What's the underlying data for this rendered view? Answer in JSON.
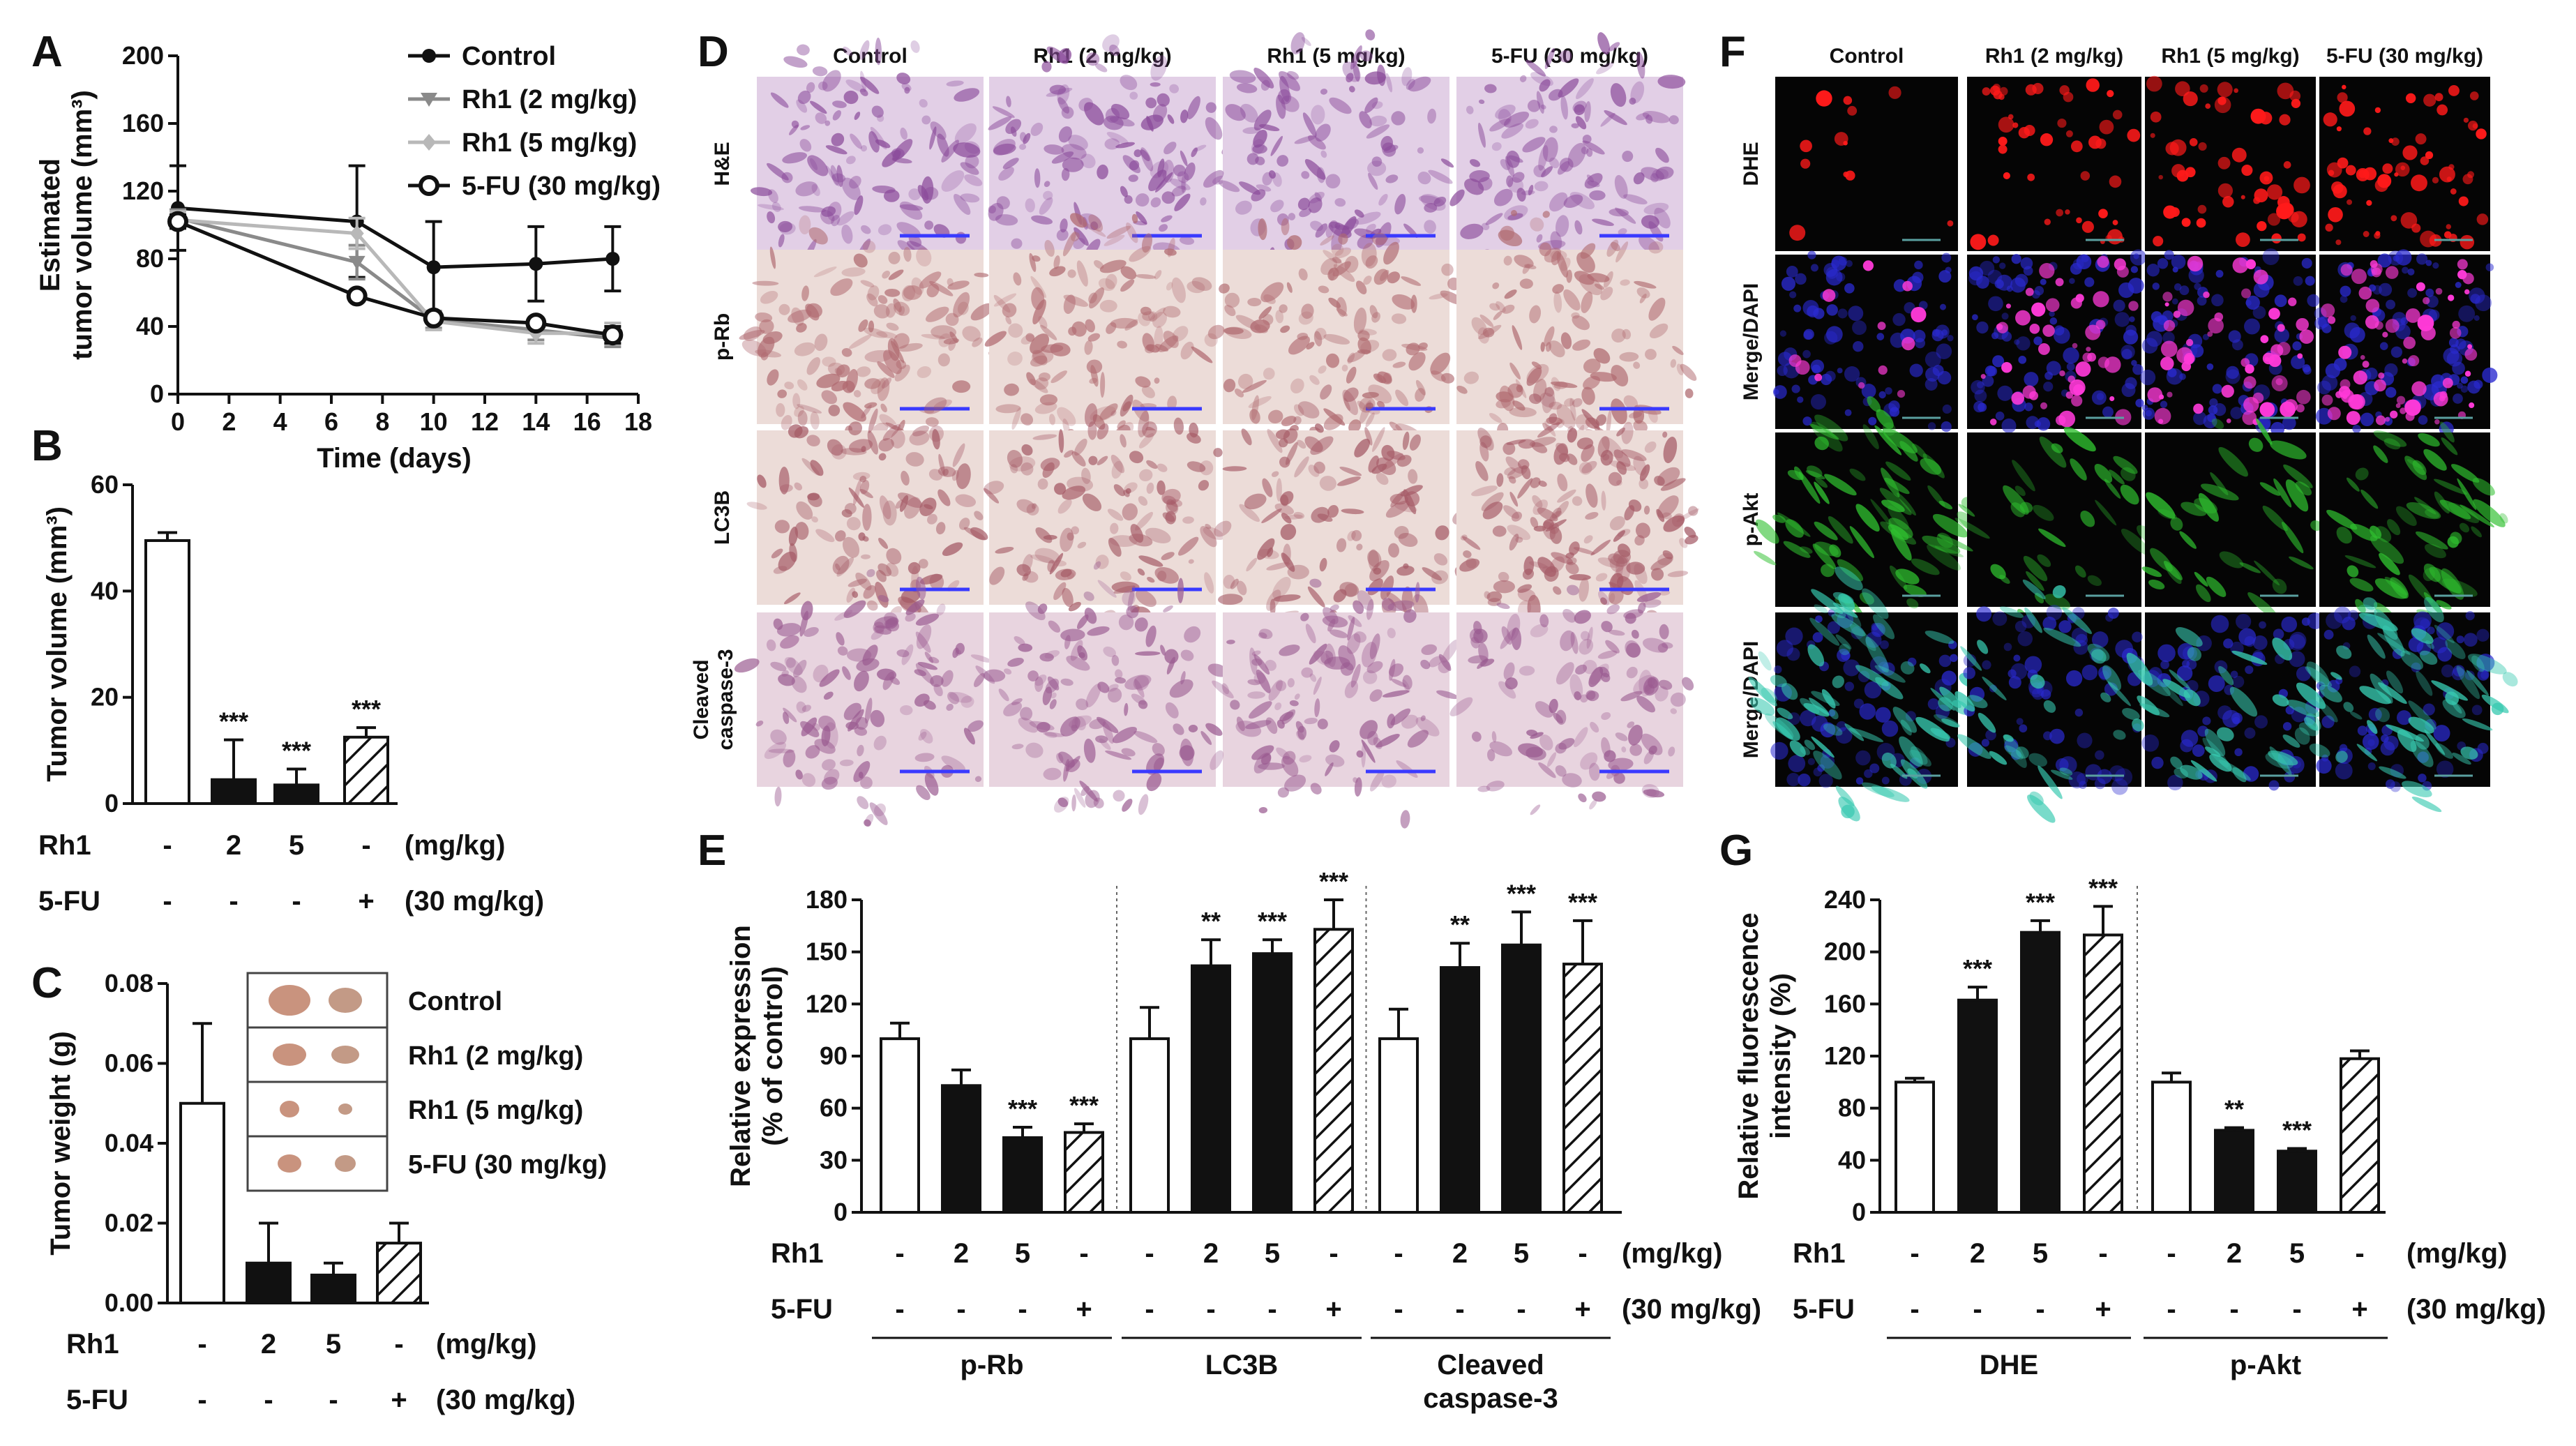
{
  "colors": {
    "axis": "#111111",
    "control_line": "#111111",
    "rh1_2_line": "#8a8a8a",
    "rh1_5_line": "#b8b8b8",
    "fu_line": "#111111",
    "he_tint": "#c8a6d2",
    "ihc_tint": "#d8b8b4",
    "dhe_red": "#ff1a1a",
    "dapi_blue": "#2a2ad0",
    "akt_green": "#2fbf2f"
  },
  "panels": {
    "A": {
      "label": "A"
    },
    "B": {
      "label": "B"
    },
    "C": {
      "label": "C"
    },
    "D": {
      "label": "D"
    },
    "E": {
      "label": "E"
    },
    "F": {
      "label": "F"
    },
    "G": {
      "label": "G"
    }
  },
  "conditions": {
    "rh1": "Rh1",
    "fu": "5-FU",
    "rh1_values": [
      "-",
      "2",
      "5",
      "-"
    ],
    "fu_values": [
      "-",
      "-",
      "-",
      "+"
    ],
    "rh1_unit": "(mg/kg)",
    "fu_unit": "(30 mg/kg)"
  },
  "micro_d": {
    "columns": [
      "Control",
      "Rh1 (2 mg/kg)",
      "Rh1 (5 mg/kg)",
      "5-FU (30 mg/kg)"
    ],
    "rows": [
      "H&E",
      "p-Rb",
      "LC3B",
      "Cleaved caspase-3"
    ]
  },
  "micro_f": {
    "columns": [
      "Control",
      "Rh1 (2 mg/kg)",
      "Rh1 (5 mg/kg)",
      "5-FU (30 mg/kg)"
    ],
    "rows": [
      "DHE",
      "Merge/DAPI",
      "p-Akt",
      "Merge/DAPI"
    ]
  },
  "photo_c": {
    "rows": [
      "Control",
      "Rh1 (2 mg/kg)",
      "Rh1 (5 mg/kg)",
      "5-FU (30 mg/kg)"
    ]
  },
  "chart_data": [
    {
      "panel": "A",
      "type": "line",
      "xlabel": "Time (days)",
      "ylabel": "Estimated tumor volume (mm³)",
      "xlim": [
        0,
        18
      ],
      "ylim": [
        0,
        200
      ],
      "xticks": [
        "0",
        "2",
        "4",
        "6",
        "8",
        "10",
        "12",
        "14",
        "16",
        "18"
      ],
      "yticks": [
        "0",
        "40",
        "80",
        "120",
        "160",
        "200"
      ],
      "x": [
        0,
        7,
        10,
        14,
        17
      ],
      "legend_position": "top-right",
      "series": [
        {
          "name": "Control",
          "values": [
            110,
            102,
            75,
            77,
            80
          ],
          "errors": [
            25,
            33,
            27,
            22,
            19
          ]
        },
        {
          "name": "Rh1 (2 mg/kg)",
          "values": [
            104,
            78,
            44,
            38,
            33
          ],
          "errors": [
            5,
            10,
            5,
            6,
            5
          ]
        },
        {
          "name": "Rh1 (5 mg/kg)",
          "values": [
            103,
            95,
            43,
            36,
            36
          ],
          "errors": [
            5,
            9,
            5,
            6,
            6
          ]
        },
        {
          "name": "5-FU (30 mg/kg)",
          "values": [
            102,
            58,
            45,
            42,
            35
          ],
          "errors": [
            4,
            3,
            3,
            3,
            5
          ]
        }
      ]
    },
    {
      "panel": "B",
      "type": "bar",
      "ylabel": "Tumor volume (mm³)",
      "ylim": [
        0,
        60
      ],
      "yticks": [
        "0",
        "20",
        "40",
        "60"
      ],
      "values": [
        49.5,
        4.5,
        3.5,
        12.5
      ],
      "errors": [
        1.5,
        7.5,
        3,
        1.8
      ],
      "annotations": [
        "",
        "***",
        "***",
        "***"
      ]
    },
    {
      "panel": "C",
      "type": "bar",
      "ylabel": "Tumor weight (g)",
      "ylim": [
        0,
        0.08
      ],
      "yticks": [
        "0.00",
        "0.02",
        "0.04",
        "0.06",
        "0.08"
      ],
      "values": [
        0.05,
        0.01,
        0.007,
        0.015
      ],
      "errors": [
        0.02,
        0.01,
        0.003,
        0.005
      ],
      "annotations": [
        "",
        "",
        "",
        ""
      ]
    },
    {
      "panel": "E",
      "type": "bar",
      "ylabel": "Relative expression (% of control)",
      "ylim": [
        0,
        180
      ],
      "yticks": [
        "0",
        "30",
        "60",
        "90",
        "120",
        "150",
        "180"
      ],
      "groups": [
        {
          "name": "p-Rb",
          "values": [
            100,
            73,
            43,
            46
          ],
          "errors": [
            9,
            9,
            6,
            5
          ],
          "annotations": [
            "",
            "",
            "***",
            "***"
          ]
        },
        {
          "name": "LC3B",
          "values": [
            100,
            142,
            149,
            163
          ],
          "errors": [
            18,
            15,
            8,
            17
          ],
          "annotations": [
            "",
            "**",
            "***",
            "***"
          ]
        },
        {
          "name": "Cleaved caspase-3",
          "values": [
            100,
            141,
            154,
            143
          ],
          "errors": [
            17,
            14,
            19,
            25
          ],
          "annotations": [
            "",
            "**",
            "***",
            "***"
          ]
        }
      ]
    },
    {
      "panel": "G",
      "type": "bar",
      "ylabel": "Relative fluorescence intensity (%)",
      "ylim": [
        0,
        240
      ],
      "yticks": [
        "0",
        "40",
        "80",
        "120",
        "160",
        "200",
        "240"
      ],
      "groups": [
        {
          "name": "DHE",
          "values": [
            100,
            163,
            215,
            213
          ],
          "errors": [
            3,
            10,
            9,
            22
          ],
          "annotations": [
            "",
            "***",
            "***",
            "***"
          ]
        },
        {
          "name": "p-Akt",
          "values": [
            100,
            63,
            47,
            118
          ],
          "errors": [
            7,
            2,
            2,
            6
          ],
          "annotations": [
            "",
            "**",
            "***",
            ""
          ]
        }
      ]
    }
  ]
}
